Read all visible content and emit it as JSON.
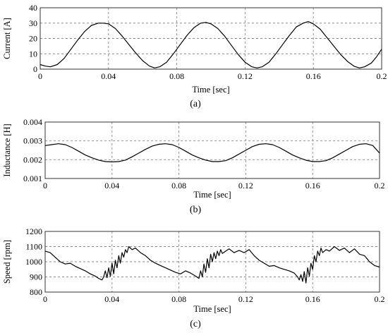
{
  "chart_data": [
    {
      "type": "line",
      "panel_label": "(a)",
      "xlabel": "Time [sec]",
      "ylabel": "Current [A]",
      "xlim": [
        0,
        0.2
      ],
      "ylim": [
        0,
        40
      ],
      "xticks": [
        0,
        0.04,
        0.08,
        0.12,
        0.16,
        0.2
      ],
      "xtick_labels": [
        "0",
        "0.04",
        "0.08",
        "0.12",
        "0.16",
        "0.2"
      ],
      "yticks": [
        0,
        10,
        20,
        30,
        40
      ],
      "ytick_labels": [
        "0",
        "10",
        "20",
        "30",
        "40"
      ],
      "grid": true,
      "series": [
        {
          "x": [
            0,
            0.003,
            0.006,
            0.01,
            0.014,
            0.018,
            0.022,
            0.026,
            0.03,
            0.034,
            0.037,
            0.04,
            0.044,
            0.048,
            0.052,
            0.056,
            0.06,
            0.064,
            0.067,
            0.07,
            0.074,
            0.078,
            0.082,
            0.086,
            0.09,
            0.094,
            0.097,
            0.1,
            0.104,
            0.108,
            0.112,
            0.116,
            0.12,
            0.124,
            0.127,
            0.13,
            0.134,
            0.138,
            0.142,
            0.146,
            0.15,
            0.154,
            0.157,
            0.16,
            0.164,
            0.168,
            0.172,
            0.176,
            0.18,
            0.184,
            0.187,
            0.19,
            0.194,
            0.197,
            0.2
          ],
          "values": [
            3,
            2,
            1.5,
            3,
            7,
            13,
            19,
            24.5,
            28.5,
            30,
            30,
            29.5,
            26.5,
            21.5,
            16,
            10.5,
            5.5,
            2,
            0.8,
            1.5,
            4.5,
            10,
            16,
            22,
            27,
            30,
            30.5,
            29.5,
            26.5,
            21.5,
            15.5,
            9.5,
            4.5,
            1.5,
            0.8,
            1.5,
            4.5,
            10,
            16,
            22,
            27.5,
            30,
            31,
            29.5,
            26,
            20.5,
            15,
            9.5,
            5,
            1.8,
            0.8,
            1.5,
            4,
            8,
            13
          ]
        }
      ]
    },
    {
      "type": "line",
      "panel_label": "(b)",
      "xlabel": "Time [sec]",
      "ylabel": "Inductance [H]",
      "xlim": [
        0,
        0.2
      ],
      "ylim": [
        0.001,
        0.004
      ],
      "xticks": [
        0,
        0.04,
        0.08,
        0.12,
        0.16,
        0.2
      ],
      "xtick_labels": [
        "0",
        "0.04",
        "0.08",
        "0.12",
        "0.16",
        "0.2"
      ],
      "yticks": [
        0.001,
        0.002,
        0.003,
        0.004
      ],
      "ytick_labels": [
        "0.001",
        "0.002",
        "0.003",
        "0.004"
      ],
      "grid": true,
      "series": [
        {
          "x": [
            0,
            0.004,
            0.008,
            0.012,
            0.016,
            0.02,
            0.024,
            0.028,
            0.032,
            0.036,
            0.04,
            0.044,
            0.048,
            0.052,
            0.056,
            0.06,
            0.064,
            0.068,
            0.072,
            0.076,
            0.08,
            0.084,
            0.088,
            0.092,
            0.096,
            0.1,
            0.104,
            0.108,
            0.112,
            0.116,
            0.12,
            0.124,
            0.128,
            0.132,
            0.136,
            0.14,
            0.144,
            0.148,
            0.152,
            0.156,
            0.16,
            0.164,
            0.168,
            0.172,
            0.176,
            0.18,
            0.184,
            0.188,
            0.192,
            0.196,
            0.2
          ],
          "values": [
            0.00275,
            0.0028,
            0.00285,
            0.0028,
            0.00265,
            0.00245,
            0.00225,
            0.0021,
            0.00198,
            0.0019,
            0.00188,
            0.0019,
            0.00198,
            0.00215,
            0.00235,
            0.00255,
            0.00272,
            0.00282,
            0.00285,
            0.0028,
            0.00265,
            0.00245,
            0.00225,
            0.0021,
            0.00198,
            0.0019,
            0.0019,
            0.00195,
            0.0021,
            0.0023,
            0.0025,
            0.0027,
            0.00282,
            0.00285,
            0.0028,
            0.00265,
            0.00245,
            0.00225,
            0.0021,
            0.00197,
            0.0019,
            0.0019,
            0.00195,
            0.0021,
            0.0023,
            0.0025,
            0.0027,
            0.00282,
            0.00285,
            0.00275,
            0.00235
          ]
        }
      ]
    },
    {
      "type": "line",
      "panel_label": "(c)",
      "xlabel": "Time [sec]",
      "ylabel": "Speed [rpm]",
      "xlim": [
        0,
        0.2
      ],
      "ylim": [
        800,
        1200
      ],
      "xticks": [
        0,
        0.04,
        0.08,
        0.12,
        0.16,
        0.2
      ],
      "xtick_labels": [
        "0",
        "0.04",
        "0.08",
        "0.12",
        "0.16",
        "0.2"
      ],
      "yticks": [
        800,
        900,
        1000,
        1100,
        1200
      ],
      "ytick_labels": [
        "800",
        "900",
        "1000",
        "1100",
        "1200"
      ],
      "grid": true,
      "series": [
        {
          "x": [
            0,
            0.003,
            0.006,
            0.009,
            0.012,
            0.015,
            0.018,
            0.021,
            0.024,
            0.027,
            0.03,
            0.032,
            0.034,
            0.035,
            0.036,
            0.037,
            0.038,
            0.039,
            0.04,
            0.041,
            0.042,
            0.043,
            0.044,
            0.045,
            0.046,
            0.047,
            0.048,
            0.049,
            0.05,
            0.052,
            0.054,
            0.057,
            0.06,
            0.063,
            0.066,
            0.069,
            0.072,
            0.075,
            0.078,
            0.081,
            0.084,
            0.087,
            0.09,
            0.092,
            0.093,
            0.094,
            0.095,
            0.096,
            0.097,
            0.098,
            0.099,
            0.1,
            0.101,
            0.102,
            0.103,
            0.104,
            0.105,
            0.106,
            0.108,
            0.11,
            0.113,
            0.116,
            0.119,
            0.122,
            0.125,
            0.128,
            0.131,
            0.134,
            0.137,
            0.14,
            0.143,
            0.146,
            0.149,
            0.151,
            0.152,
            0.153,
            0.154,
            0.155,
            0.156,
            0.157,
            0.158,
            0.159,
            0.16,
            0.161,
            0.162,
            0.163,
            0.164,
            0.165,
            0.166,
            0.168,
            0.17,
            0.173,
            0.176,
            0.179,
            0.182,
            0.185,
            0.188,
            0.191,
            0.194,
            0.197,
            0.2
          ],
          "values": [
            1070,
            1060,
            1030,
            1000,
            985,
            990,
            970,
            955,
            940,
            920,
            905,
            890,
            880,
            900,
            940,
            895,
            960,
            905,
            990,
            920,
            1010,
            960,
            1040,
            990,
            1060,
            1030,
            1080,
            1060,
            1100,
            1080,
            1090,
            1060,
            1040,
            1010,
            990,
            975,
            960,
            945,
            930,
            920,
            940,
            925,
            905,
            890,
            940,
            900,
            985,
            930,
            1020,
            960,
            1050,
            1000,
            1060,
            1020,
            1070,
            1040,
            1080,
            1055,
            1070,
            1085,
            1060,
            1075,
            1060,
            1080,
            1040,
            1010,
            990,
            970,
            975,
            960,
            950,
            940,
            925,
            900,
            880,
            915,
            870,
            935,
            860,
            960,
            905,
            990,
            950,
            1040,
            1000,
            1070,
            1040,
            1090,
            1060,
            1080,
            1070,
            1100,
            1075,
            1090,
            1060,
            1085,
            1050,
            1040,
            1000,
            975,
            965
          ]
        }
      ]
    }
  ]
}
